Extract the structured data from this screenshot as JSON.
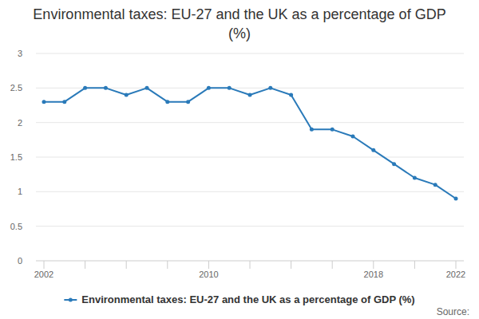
{
  "chart_data": {
    "type": "line",
    "title": "Environmental taxes: EU-27 and the UK as a percentage of GDP (%)",
    "x": [
      2002,
      2003,
      2004,
      2005,
      2006,
      2007,
      2008,
      2009,
      2010,
      2011,
      2012,
      2013,
      2014,
      2015,
      2016,
      2017,
      2018,
      2019,
      2020,
      2021,
      2022
    ],
    "series": [
      {
        "name": "Environmental taxes: EU-27 and the UK as a percentage of GDP (%)",
        "color": "#2a7ab9",
        "marker": "circle",
        "values": [
          2.3,
          2.3,
          2.5,
          2.5,
          2.4,
          2.5,
          2.3,
          2.3,
          2.5,
          2.5,
          2.4,
          2.5,
          2.4,
          1.9,
          1.9,
          1.8,
          1.6,
          1.4,
          1.2,
          1.1,
          0.9
        ]
      }
    ],
    "xlim": [
      2002,
      2022
    ],
    "xticks": [
      2002,
      2010,
      2018,
      2022
    ],
    "ylim": [
      0,
      3
    ],
    "yticks": [
      0,
      0.5,
      1,
      1.5,
      2,
      2.5,
      3
    ],
    "grid": true,
    "legend": "bottom",
    "source": "Source:"
  }
}
